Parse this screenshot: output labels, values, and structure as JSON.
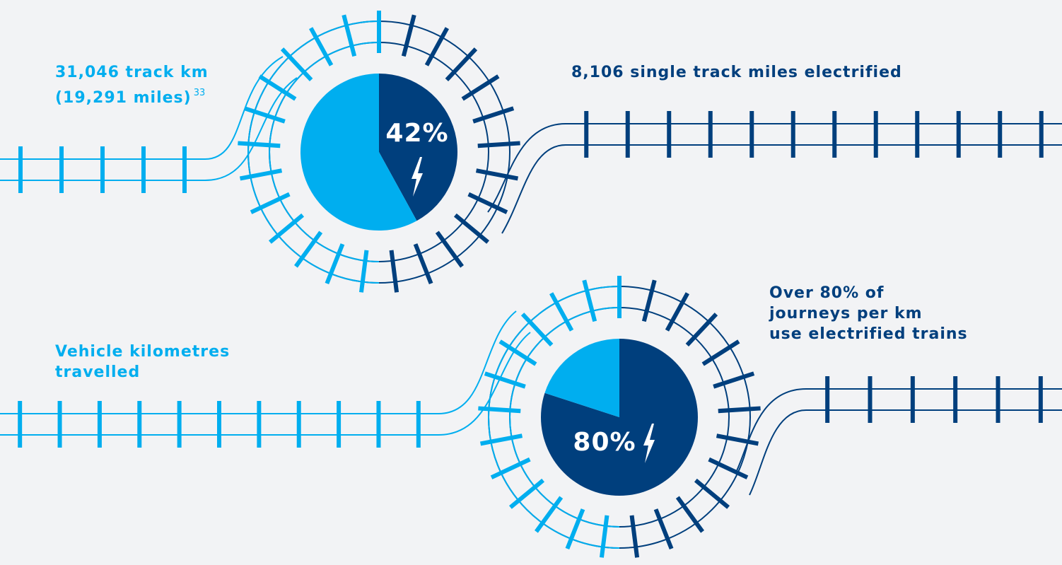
{
  "chart_data": [
    {
      "type": "pie",
      "categories": [
        "8,106 single track miles electrified",
        "31,046 track km\n(19,291 miles)"
      ],
      "values": [
        42,
        58
      ],
      "value_labels": [
        "42%",
        null
      ],
      "colors": [
        "#003f7d",
        "#00aeef"
      ],
      "footnote_ref": "33"
    },
    {
      "type": "pie",
      "categories": [
        "Over 80% of\njourneys per km\nuse electrified trains",
        "Vehicle kilometres\ntravelled"
      ],
      "values": [
        80,
        20
      ],
      "value_labels": [
        "80%",
        null
      ],
      "colors": [
        "#003f7d",
        "#00aeef"
      ]
    }
  ]
}
